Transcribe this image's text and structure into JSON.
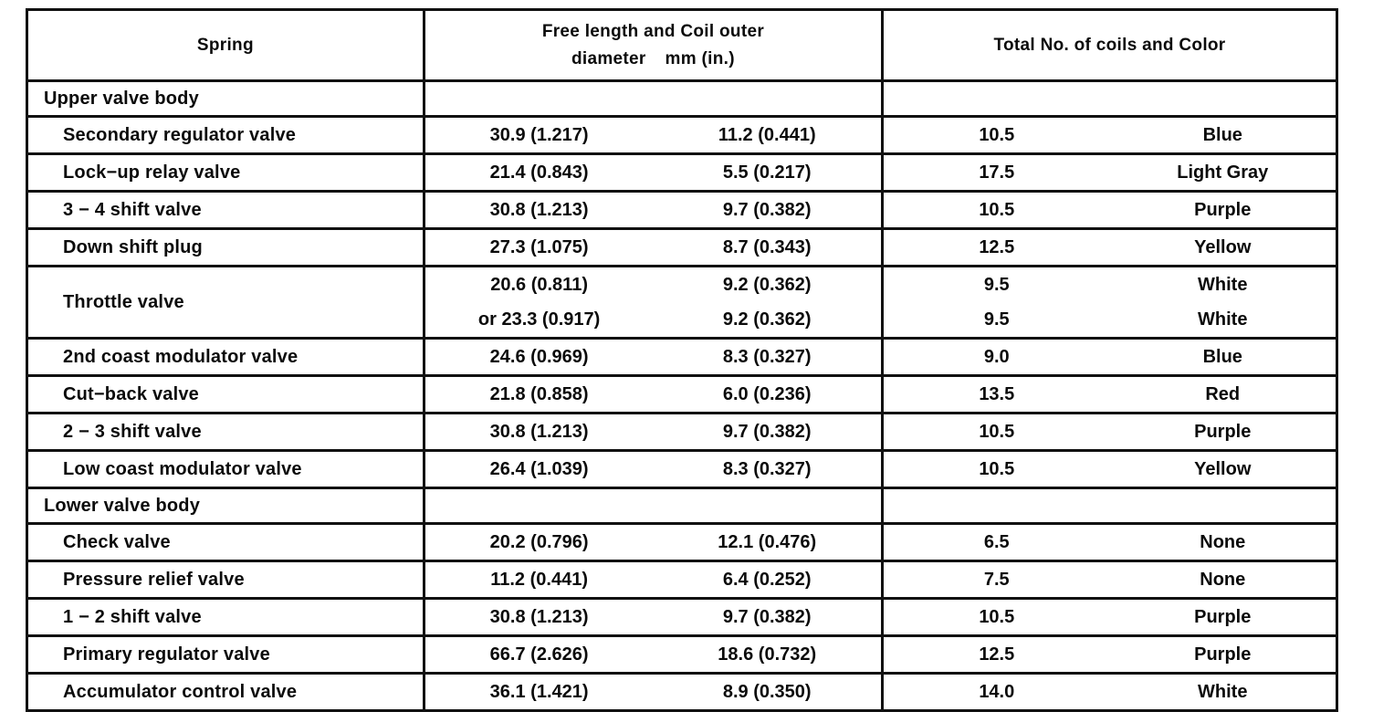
{
  "header": {
    "col_spring": "Spring",
    "col_dims_line1": "Free length and Coil outer",
    "col_dims_line2": "diameter   mm (in.)",
    "col_coils": "Total No. of coils and Color"
  },
  "rows": [
    {
      "section": "Upper valve body"
    },
    {
      "name": "Secondary regulator valve",
      "free_length": [
        "30.9 (1.217)"
      ],
      "coil_diameter": [
        "11.2 (0.441)"
      ],
      "coils": [
        "10.5"
      ],
      "color": [
        "Blue"
      ]
    },
    {
      "name": "Lock−up relay valve",
      "free_length": [
        "21.4 (0.843)"
      ],
      "coil_diameter": [
        "5.5 (0.217)"
      ],
      "coils": [
        "17.5"
      ],
      "color": [
        "Light Gray"
      ]
    },
    {
      "name": "3 − 4 shift valve",
      "free_length": [
        "30.8 (1.213)"
      ],
      "coil_diameter": [
        "9.7 (0.382)"
      ],
      "coils": [
        "10.5"
      ],
      "color": [
        "Purple"
      ]
    },
    {
      "name": "Down shift plug",
      "free_length": [
        "27.3 (1.075)"
      ],
      "coil_diameter": [
        "8.7 (0.343)"
      ],
      "coils": [
        "12.5"
      ],
      "color": [
        "Yellow"
      ]
    },
    {
      "name": "Throttle valve",
      "free_length": [
        "20.6 (0.811)",
        "or 23.3 (0.917)"
      ],
      "coil_diameter": [
        "9.2 (0.362)",
        "9.2 (0.362)"
      ],
      "coils": [
        "9.5",
        "9.5"
      ],
      "color": [
        "White",
        "White"
      ]
    },
    {
      "name": "2nd coast modulator valve",
      "free_length": [
        "24.6 (0.969)"
      ],
      "coil_diameter": [
        "8.3 (0.327)"
      ],
      "coils": [
        "9.0"
      ],
      "color": [
        "Blue"
      ]
    },
    {
      "name": "Cut−back valve",
      "free_length": [
        "21.8 (0.858)"
      ],
      "coil_diameter": [
        "6.0 (0.236)"
      ],
      "coils": [
        "13.5"
      ],
      "color": [
        "Red"
      ]
    },
    {
      "name": "2 − 3 shift valve",
      "free_length": [
        "30.8 (1.213)"
      ],
      "coil_diameter": [
        "9.7 (0.382)"
      ],
      "coils": [
        "10.5"
      ],
      "color": [
        "Purple"
      ]
    },
    {
      "name": "Low coast modulator valve",
      "free_length": [
        "26.4 (1.039)"
      ],
      "coil_diameter": [
        "8.3 (0.327)"
      ],
      "coils": [
        "10.5"
      ],
      "color": [
        "Yellow"
      ]
    },
    {
      "section": "Lower valve body"
    },
    {
      "name": "Check valve",
      "free_length": [
        "20.2 (0.796)"
      ],
      "coil_diameter": [
        "12.1 (0.476)"
      ],
      "coils": [
        "6.5"
      ],
      "color": [
        "None"
      ]
    },
    {
      "name": "Pressure relief valve",
      "free_length": [
        "11.2 (0.441)"
      ],
      "coil_diameter": [
        "6.4 (0.252)"
      ],
      "coils": [
        "7.5"
      ],
      "color": [
        "None"
      ]
    },
    {
      "name": "1 − 2 shift valve",
      "free_length": [
        "30.8 (1.213)"
      ],
      "coil_diameter": [
        "9.7 (0.382)"
      ],
      "coils": [
        "10.5"
      ],
      "color": [
        "Purple"
      ]
    },
    {
      "name": "Primary regulator valve",
      "free_length": [
        "66.7 (2.626)"
      ],
      "coil_diameter": [
        "18.6 (0.732)"
      ],
      "coils": [
        "12.5"
      ],
      "color": [
        "Purple"
      ]
    },
    {
      "name": "Accumulator control valve",
      "free_length": [
        "36.1 (1.421)"
      ],
      "coil_diameter": [
        "8.9 (0.350)"
      ],
      "coils": [
        "14.0"
      ],
      "color": [
        "White"
      ]
    }
  ]
}
